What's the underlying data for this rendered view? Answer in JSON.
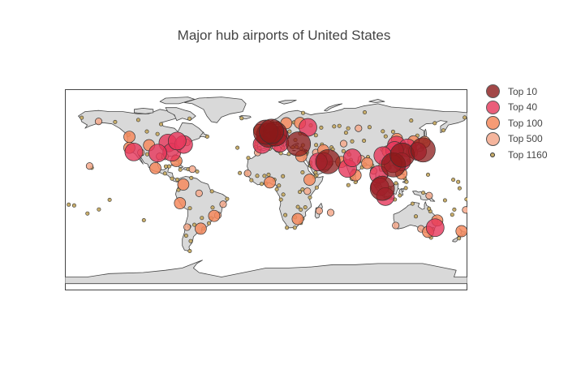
{
  "title": "Major hub airports of United States",
  "legend": {
    "items": [
      {
        "label": "Top 10",
        "color": "#8b1a1a"
      },
      {
        "label": "Top 40",
        "color": "#e6365a"
      },
      {
        "label": "Top 100",
        "color": "#f58a5e"
      },
      {
        "label": "Top 500",
        "color": "#f4a98c"
      },
      {
        "label": "Top 1160",
        "color": "#c8ad6a"
      }
    ]
  },
  "colors": {
    "land": "#d9d9d9",
    "coast": "#444444",
    "frame": "#444444",
    "marker_border": "#333333"
  },
  "map": {
    "projection": "equirectangular",
    "lon_range": [
      -180,
      180
    ],
    "lat_range": [
      -90,
      90
    ]
  },
  "markers": {
    "top10": [
      {
        "lon": 2,
        "lat": 49
      },
      {
        "lon": 8,
        "lat": 50
      },
      {
        "lon": -0.4,
        "lat": 51.5
      },
      {
        "lon": 4.8,
        "lat": 52.3
      },
      {
        "lon": 28.8,
        "lat": 41
      },
      {
        "lon": 55.4,
        "lat": 25.2
      },
      {
        "lon": 113.9,
        "lat": 22.3
      },
      {
        "lon": 121.8,
        "lat": 31.1
      },
      {
        "lon": 103.9,
        "lat": 1.3
      },
      {
        "lon": 140.4,
        "lat": 35.7
      }
    ],
    "top40": [
      {
        "lon": -87.9,
        "lat": 41.9
      },
      {
        "lon": -84.4,
        "lat": 33.6
      },
      {
        "lon": -73.8,
        "lat": 40.6
      },
      {
        "lon": -118.4,
        "lat": 33.9
      },
      {
        "lon": -97,
        "lat": 32.9
      },
      {
        "lon": -79.6,
        "lat": 43.7
      },
      {
        "lon": -3.6,
        "lat": 40.5
      },
      {
        "lon": 11.8,
        "lat": 48.4
      },
      {
        "lon": 12.3,
        "lat": 41.8
      },
      {
        "lon": 37.4,
        "lat": 55.9
      },
      {
        "lon": 51.6,
        "lat": 25.3
      },
      {
        "lon": 46.7,
        "lat": 24.9
      },
      {
        "lon": 72.9,
        "lat": 19.1
      },
      {
        "lon": 77.1,
        "lat": 28.6
      },
      {
        "lon": 100.7,
        "lat": 13.7
      },
      {
        "lon": 116.6,
        "lat": 40.1
      },
      {
        "lon": 126.4,
        "lat": 37.5
      },
      {
        "lon": 114.9,
        "lat": 35.2
      },
      {
        "lon": 121.2,
        "lat": 25.1
      },
      {
        "lon": 101.7,
        "lat": 2.7
      },
      {
        "lon": 106.7,
        "lat": -6.1
      },
      {
        "lon": 151.2,
        "lat": -33.9
      },
      {
        "lon": 135.4,
        "lat": 34.4
      },
      {
        "lon": 113.3,
        "lat": 23.4
      },
      {
        "lon": 104.4,
        "lat": 30.6
      }
    ],
    "top100": [
      {
        "lon": -122.4,
        "lat": 37.6
      },
      {
        "lon": -104.7,
        "lat": 39.9
      },
      {
        "lon": -122.3,
        "lat": 47.4
      },
      {
        "lon": -80.3,
        "lat": 25.8
      },
      {
        "lon": -99.1,
        "lat": 19.4
      },
      {
        "lon": -46.5,
        "lat": -23.4
      },
      {
        "lon": -77.1,
        "lat": -12
      },
      {
        "lon": -58.5,
        "lat": -34.8
      },
      {
        "lon": -74.1,
        "lat": 4.7
      },
      {
        "lon": -6.3,
        "lat": 53.4
      },
      {
        "lon": 18,
        "lat": 59.6
      },
      {
        "lon": 31.4,
        "lat": 30.1
      },
      {
        "lon": 28.2,
        "lat": -26.1
      },
      {
        "lon": 38.8,
        "lat": 9
      },
      {
        "lon": 3.3,
        "lat": 6.6
      },
      {
        "lon": 51.2,
        "lat": 35.4
      },
      {
        "lon": 67.2,
        "lat": 24.9
      },
      {
        "lon": 80,
        "lat": 13
      },
      {
        "lon": 90.4,
        "lat": 23.8
      },
      {
        "lon": 105.8,
        "lat": 21.2
      },
      {
        "lon": 120.9,
        "lat": 14.5
      },
      {
        "lon": 144.8,
        "lat": -37.7
      },
      {
        "lon": 153.1,
        "lat": -27.4
      },
      {
        "lon": 174.8,
        "lat": -37
      },
      {
        "lon": 131.8,
        "lat": 43.4
      },
      {
        "lon": 141.7,
        "lat": 42.8
      },
      {
        "lon": 130.4,
        "lat": 33.6
      },
      {
        "lon": 108.8,
        "lat": 34.4
      },
      {
        "lon": 117,
        "lat": 45.5
      },
      {
        "lon": 30.3,
        "lat": 59.8
      }
    ],
    "top500": [
      {
        "lon": -149.9,
        "lat": 61.2
      },
      {
        "lon": -157.9,
        "lat": 21.3
      },
      {
        "lon": -112,
        "lat": 33.4
      },
      {
        "lon": -95.3,
        "lat": 29.9
      },
      {
        "lon": -90.4,
        "lat": 29.9
      },
      {
        "lon": -81.3,
        "lat": 28.4
      },
      {
        "lon": -71,
        "lat": 42.4
      },
      {
        "lon": -66,
        "lat": 18.4
      },
      {
        "lon": -70.7,
        "lat": -33.4
      },
      {
        "lon": -43.2,
        "lat": -22.8
      },
      {
        "lon": -38.5,
        "lat": -12.9
      },
      {
        "lon": -60,
        "lat": -3.1
      },
      {
        "lon": -16.6,
        "lat": 14.7
      },
      {
        "lon": -7.6,
        "lat": 33.4
      },
      {
        "lon": 10.2,
        "lat": 36.8
      },
      {
        "lon": 36.9,
        "lat": -1.3
      },
      {
        "lon": 47.5,
        "lat": -18.8
      },
      {
        "lon": 57.7,
        "lat": -20.4
      },
      {
        "lon": 44.4,
        "lat": 33.3
      },
      {
        "lon": 69.3,
        "lat": 41.3
      },
      {
        "lon": 85.3,
        "lat": 27.7
      },
      {
        "lon": 96.1,
        "lat": 16.9
      },
      {
        "lon": 115.9,
        "lat": -31.9
      },
      {
        "lon": 138.5,
        "lat": -34.9
      },
      {
        "lon": 178.5,
        "lat": -18
      },
      {
        "lon": 145.8,
        "lat": -5.2
      },
      {
        "lon": 82.6,
        "lat": 55
      }
    ],
    "top1160": [
      {
        "lon": -165,
        "lat": 64.5
      },
      {
        "lon": -135.1,
        "lat": 60.7
      },
      {
        "lon": -114.4,
        "lat": 62.5
      },
      {
        "lon": -94,
        "lat": 58.7
      },
      {
        "lon": -68.5,
        "lat": 63.7
      },
      {
        "lon": -52.7,
        "lat": 47.6
      },
      {
        "lon": -123.2,
        "lat": 49.2
      },
      {
        "lon": -106.7,
        "lat": 52.2
      },
      {
        "lon": -97.2,
        "lat": 49.9
      },
      {
        "lon": -110.9,
        "lat": 32.1
      },
      {
        "lon": -106.4,
        "lat": 31.8
      },
      {
        "lon": -86.8,
        "lat": 21
      },
      {
        "lon": -89.7,
        "lat": 20.9
      },
      {
        "lon": -90.5,
        "lat": 14.6
      },
      {
        "lon": -84.2,
        "lat": 10
      },
      {
        "lon": -79.4,
        "lat": 9.1
      },
      {
        "lon": -77.4,
        "lat": 25
      },
      {
        "lon": -76.8,
        "lat": 18
      },
      {
        "lon": -69.7,
        "lat": 18.4
      },
      {
        "lon": -61.7,
        "lat": 16.3
      },
      {
        "lon": -66.9,
        "lat": 10.6
      },
      {
        "lon": -78.4,
        "lat": -0.1
      },
      {
        "lon": -68.2,
        "lat": -16.5
      },
      {
        "lon": -57.5,
        "lat": -25.2
      },
      {
        "lon": -56,
        "lat": -34.8
      },
      {
        "lon": -48.5,
        "lat": -1.4
      },
      {
        "lon": -34.9,
        "lat": -8.1
      },
      {
        "lon": -47.9,
        "lat": -15.9
      },
      {
        "lon": -49.2,
        "lat": -25.5
      },
      {
        "lon": -51.2,
        "lat": -30
      },
      {
        "lon": -64.2,
        "lat": -31.3
      },
      {
        "lon": -68.8,
        "lat": -32.8
      },
      {
        "lon": -71.6,
        "lat": -41.1
      },
      {
        "lon": -67.5,
        "lat": -45.9
      },
      {
        "lon": -68.3,
        "lat": -54.8
      },
      {
        "lon": -21.9,
        "lat": 64
      },
      {
        "lon": -25.7,
        "lat": 37.7
      },
      {
        "lon": -16,
        "lat": 28.5
      },
      {
        "lon": -23.5,
        "lat": 15
      },
      {
        "lon": -9.1,
        "lat": 38.8
      },
      {
        "lon": 2.1,
        "lat": 41.3
      },
      {
        "lon": 14.3,
        "lat": 40.9
      },
      {
        "lon": 23.9,
        "lat": 38
      },
      {
        "lon": 21,
        "lat": 52.2
      },
      {
        "lon": 10.6,
        "lat": 59.9
      },
      {
        "lon": 24.9,
        "lat": 60.3
      },
      {
        "lon": 19.3,
        "lat": 47.4
      },
      {
        "lon": 26.1,
        "lat": 44.6
      },
      {
        "lon": 30.5,
        "lat": 50.4
      },
      {
        "lon": 33,
        "lat": 68.8
      },
      {
        "lon": 39.9,
        "lat": 57.6
      },
      {
        "lon": 49.3,
        "lat": 55.6
      },
      {
        "lon": 44.5,
        "lat": 48.8
      },
      {
        "lon": 60.8,
        "lat": 56.7
      },
      {
        "lon": 73.4,
        "lat": 55
      },
      {
        "lon": 65.5,
        "lat": 57.2
      },
      {
        "lon": 76.9,
        "lat": 43.3
      },
      {
        "lon": 71.4,
        "lat": 51.1
      },
      {
        "lon": 92.5,
        "lat": 56
      },
      {
        "lon": 104.4,
        "lat": 52.3
      },
      {
        "lon": 113.5,
        "lat": 52
      },
      {
        "lon": 129.8,
        "lat": 62
      },
      {
        "lon": 135.2,
        "lat": 48.5
      },
      {
        "lon": 88.2,
        "lat": 69.3
      },
      {
        "lon": 150.8,
        "lat": 59.6
      },
      {
        "lon": 158.5,
        "lat": 53.2
      },
      {
        "lon": 177.6,
        "lat": 64.7
      },
      {
        "lon": 106.9,
        "lat": 47.8
      },
      {
        "lon": 87.5,
        "lat": 43.9
      },
      {
        "lon": 103.8,
        "lat": 36.1
      },
      {
        "lon": 91.1,
        "lat": 29.3
      },
      {
        "lon": 102.9,
        "lat": 25
      },
      {
        "lon": 110.4,
        "lat": 19.9
      },
      {
        "lon": 118.1,
        "lat": 24.5
      },
      {
        "lon": 120.4,
        "lat": 36.3
      },
      {
        "lon": 123.4,
        "lat": 41.6
      },
      {
        "lon": 125.7,
        "lat": 39
      },
      {
        "lon": 127,
        "lat": 33.5
      },
      {
        "lon": 139.8,
        "lat": 38.1
      },
      {
        "lon": 130.5,
        "lat": 31.8
      },
      {
        "lon": 127.6,
        "lat": 26.2
      },
      {
        "lon": 124,
        "lat": 10.3
      },
      {
        "lon": 125.6,
        "lat": 7.1
      },
      {
        "lon": 116.1,
        "lat": 5.9
      },
      {
        "lon": 110.3,
        "lat": 1.5
      },
      {
        "lon": 98.7,
        "lat": 3.6
      },
      {
        "lon": 100.3,
        "lat": 5.3
      },
      {
        "lon": 98.3,
        "lat": 8.1
      },
      {
        "lon": 104.8,
        "lat": 11.5
      },
      {
        "lon": 102.6,
        "lat": 17.9
      },
      {
        "lon": 94.9,
        "lat": 21.7
      },
      {
        "lon": 115.2,
        "lat": -8.7
      },
      {
        "lon": 119.6,
        "lat": -5.1
      },
      {
        "lon": 110.4,
        "lat": -7
      },
      {
        "lon": 124.9,
        "lat": 1.5
      },
      {
        "lon": 140.5,
        "lat": -2.6
      },
      {
        "lon": 130.9,
        "lat": -12.4
      },
      {
        "lon": 146.8,
        "lat": -19.3
      },
      {
        "lon": 145.7,
        "lat": -16.9
      },
      {
        "lon": 133.9,
        "lat": -23.8
      },
      {
        "lon": 149.2,
        "lat": -35.3
      },
      {
        "lon": 147.5,
        "lat": -42.8
      },
      {
        "lon": 172.5,
        "lat": -43.5
      },
      {
        "lon": 166.4,
        "lat": -22.3
      },
      {
        "lon": 168.3,
        "lat": -17.7
      },
      {
        "lon": 160,
        "lat": -9.4
      },
      {
        "lon": 167.4,
        "lat": 9
      },
      {
        "lon": 173,
        "lat": 1.4
      },
      {
        "lon": 144.8,
        "lat": 13.5
      },
      {
        "lon": 171.8,
        "lat": 7.1
      },
      {
        "lon": 179.2,
        "lat": -8.5
      },
      {
        "lon": -171.7,
        "lat": -14
      },
      {
        "lon": -149.6,
        "lat": -17.6
      },
      {
        "lon": -159.8,
        "lat": -21.2
      },
      {
        "lon": -140,
        "lat": -9
      },
      {
        "lon": -156,
        "lat": 19.7
      },
      {
        "lon": -176.6,
        "lat": -13.3
      },
      {
        "lon": -109.4,
        "lat": -27.2
      },
      {
        "lon": 73.1,
        "lat": 33.6
      },
      {
        "lon": 74.4,
        "lat": 31.5
      },
      {
        "lon": 75.8,
        "lat": 26.8
      },
      {
        "lon": 83,
        "lat": 25.3
      },
      {
        "lon": 88.4,
        "lat": 22.6
      },
      {
        "lon": 85.8,
        "lat": 20.2
      },
      {
        "lon": 78.4,
        "lat": 17.2
      },
      {
        "lon": 77.7,
        "lat": 12.9
      },
      {
        "lon": 76.4,
        "lat": 10
      },
      {
        "lon": 79.9,
        "lat": 6.9
      },
      {
        "lon": 73.5,
        "lat": 4.2
      },
      {
        "lon": 72.6,
        "lat": 23
      },
      {
        "lon": 56.3,
        "lat": 23.6
      },
      {
        "lon": 58.3,
        "lat": 23.6
      },
      {
        "lon": 54.5,
        "lat": 24.4
      },
      {
        "lon": 50.6,
        "lat": 26.3
      },
      {
        "lon": 47.9,
        "lat": 29.2
      },
      {
        "lon": 39.2,
        "lat": 21.7
      },
      {
        "lon": 39.6,
        "lat": 24.6
      },
      {
        "lon": 44.2,
        "lat": 15.4
      },
      {
        "lon": 45,
        "lat": 12.8
      },
      {
        "lon": 43.1,
        "lat": 11.5
      },
      {
        "lon": 45.3,
        "lat": 2
      },
      {
        "lon": 39.2,
        "lat": -6.8
      },
      {
        "lon": 32.6,
        "lat": 0.3
      },
      {
        "lon": 30.1,
        "lat": -1.9
      },
      {
        "lon": 28.4,
        "lat": -15.3
      },
      {
        "lon": 31,
        "lat": -17.8
      },
      {
        "lon": 35,
        "lat": -15.7
      },
      {
        "lon": 32.6,
        "lat": -25.9
      },
      {
        "lon": 31.1,
        "lat": -29.6
      },
      {
        "lon": 18.6,
        "lat": -33.9
      },
      {
        "lon": 25.6,
        "lat": -33.9
      },
      {
        "lon": 17.1,
        "lat": -22.6
      },
      {
        "lon": 25.9,
        "lat": -24.6
      },
      {
        "lon": 13.2,
        "lat": -8.8
      },
      {
        "lon": 15.3,
        "lat": -4.3
      },
      {
        "lon": 9.5,
        "lat": 0.4
      },
      {
        "lon": 11.5,
        "lat": 3.8
      },
      {
        "lon": 7.4,
        "lat": 9
      },
      {
        "lon": -0.2,
        "lat": 5.6
      },
      {
        "lon": -4,
        "lat": 5.3
      },
      {
        "lon": -13.2,
        "lat": 8.6
      },
      {
        "lon": -17.5,
        "lat": 14.7
      },
      {
        "lon": -8,
        "lat": 12.5
      },
      {
        "lon": -1.5,
        "lat": 12.4
      },
      {
        "lon": 2.2,
        "lat": 13.5
      },
      {
        "lon": 15,
        "lat": 12.1
      },
      {
        "lon": 32.6,
        "lat": 15.6
      },
      {
        "lon": 13.2,
        "lat": 32.7
      },
      {
        "lon": 3.2,
        "lat": 36.7
      },
      {
        "lon": 20.3,
        "lat": 32.1
      },
      {
        "lon": 33,
        "lat": 34.9
      },
      {
        "lon": 35.5,
        "lat": 33.8
      },
      {
        "lon": 36.5,
        "lat": 33.5
      },
      {
        "lon": 35.9,
        "lat": 32
      },
      {
        "lon": 34.9,
        "lat": 32
      },
      {
        "lon": 39.8,
        "lat": 21.4
      },
      {
        "lon": 44.7,
        "lat": 40.1
      },
      {
        "lon": 49.9,
        "lat": 40.5
      },
      {
        "lon": 58.4,
        "lat": 37.9
      },
      {
        "lon": 69.2,
        "lat": 34.6
      },
      {
        "lon": 59.6,
        "lat": 36.2
      },
      {
        "lon": 51.4,
        "lat": 32.7
      },
      {
        "lon": 52.6,
        "lat": 29.5
      },
      {
        "lon": 31.3,
        "lat": 37
      },
      {
        "lon": 32.9,
        "lat": 39.9
      },
      {
        "lon": 27.2,
        "lat": 38.3
      },
      {
        "lon": 14.5,
        "lat": 46
      },
      {
        "lon": 16.4,
        "lat": 48.2
      },
      {
        "lon": 14.3,
        "lat": 50.1
      },
      {
        "lon": 13.5,
        "lat": 52.4
      },
      {
        "lon": 9.9,
        "lat": 53.6
      },
      {
        "lon": 12.6,
        "lat": 55.6
      },
      {
        "lon": 5.2,
        "lat": 60.3
      },
      {
        "lon": 4.5,
        "lat": 50.9
      },
      {
        "lon": 6.1,
        "lat": 49.6
      },
      {
        "lon": 6.8,
        "lat": 51.3
      },
      {
        "lon": 8.5,
        "lat": 47.5
      },
      {
        "lon": 6.1,
        "lat": 46.2
      },
      {
        "lon": 5.2,
        "lat": 43.4
      },
      {
        "lon": 7.2,
        "lat": 43.7
      },
      {
        "lon": 1.4,
        "lat": 43.6
      },
      {
        "lon": -0.7,
        "lat": 44.8
      },
      {
        "lon": -1.6,
        "lat": 47.2
      },
      {
        "lon": 4.8,
        "lat": 45.7
      },
      {
        "lon": 9.3,
        "lat": 45.6
      },
      {
        "lon": 11.3,
        "lat": 44.5
      },
      {
        "lon": 12.3,
        "lat": 45.5
      },
      {
        "lon": 15.1,
        "lat": 37.5
      },
      {
        "lon": 9.1,
        "lat": 39.3
      },
      {
        "lon": -2.9,
        "lat": 43.3
      },
      {
        "lon": -8.4,
        "lat": 43.3
      },
      {
        "lon": -5.9,
        "lat": 37.4
      },
      {
        "lon": -0.5,
        "lat": 38.3
      },
      {
        "lon": 2.7,
        "lat": 39.6
      },
      {
        "lon": -8.7,
        "lat": 41.2
      },
      {
        "lon": -2.3,
        "lat": 53.4
      },
      {
        "lon": -1.7,
        "lat": 52.5
      },
      {
        "lon": -4.4,
        "lat": 55.9
      },
      {
        "lon": -3.4,
        "lat": 55.9
      },
      {
        "lon": -5.9,
        "lat": 54.6
      },
      {
        "lon": -2.7,
        "lat": 51.4
      },
      {
        "lon": -1.2,
        "lat": 53.8
      }
    ]
  }
}
